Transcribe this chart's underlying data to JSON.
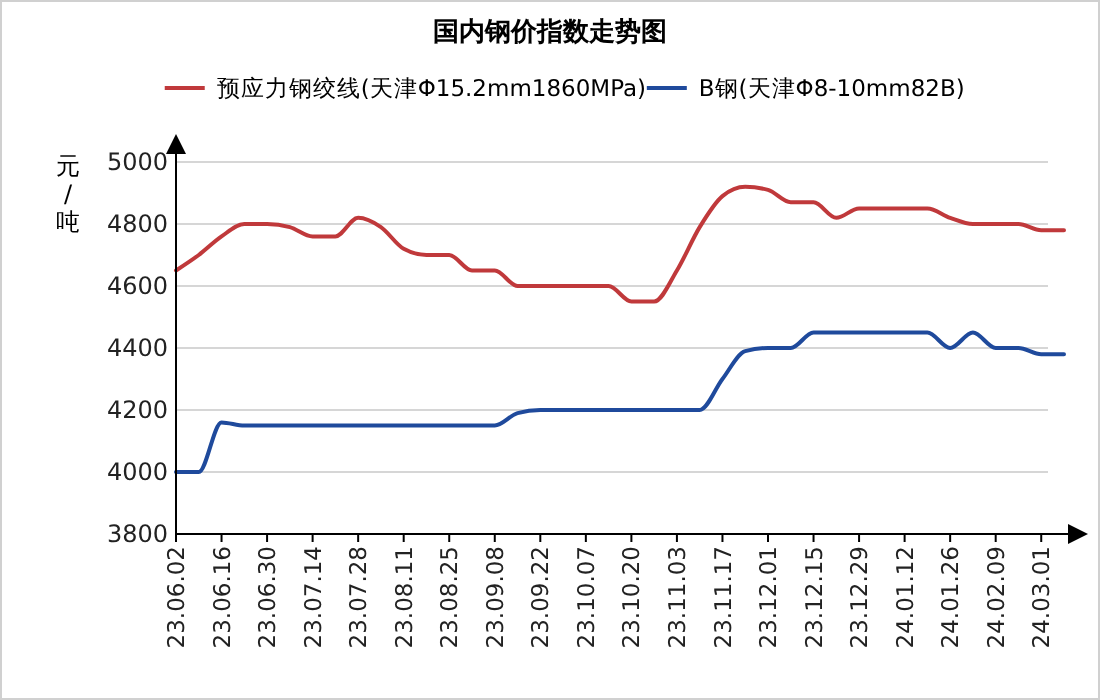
{
  "chart_data": {
    "type": "line",
    "title": "国内钢价指数走势图",
    "ylabel": "元/吨",
    "categories": [
      "23.06.02",
      null,
      "23.06.16",
      null,
      "23.06.30",
      null,
      "23.07.14",
      null,
      "23.07.28",
      null,
      "23.08.11",
      null,
      "23.08.25",
      null,
      "23.09.08",
      null,
      "23.09.22",
      null,
      "23.10.07",
      null,
      "23.10.20",
      null,
      "23.11.03",
      null,
      "23.11.17",
      null,
      "23.12.01",
      null,
      "23.12.15",
      null,
      "23.12.29",
      null,
      "24.01.12",
      null,
      "24.01.26",
      null,
      "24.02.09",
      null,
      "24.03.01",
      null
    ],
    "series": [
      {
        "name": "预应力钢绞线(天津Φ15.2mm1860MPa)",
        "color": "#c0393b",
        "values": [
          4650,
          4700,
          4760,
          4800,
          4800,
          4790,
          4760,
          4760,
          4820,
          4790,
          4720,
          4700,
          4700,
          4650,
          4650,
          4600,
          4600,
          4600,
          4600,
          4600,
          4550,
          4550,
          4650,
          4790,
          4890,
          4920,
          4910,
          4870,
          4870,
          4820,
          4850,
          4850,
          4850,
          4850,
          4820,
          4800,
          4800,
          4800,
          4780,
          4780
        ]
      },
      {
        "name": "B钢(天津Φ8-10mm82B)",
        "color": "#1f4a9c",
        "values": [
          4000,
          4000,
          4160,
          4150,
          4150,
          4150,
          4150,
          4150,
          4150,
          4150,
          4150,
          4150,
          4150,
          4150,
          4150,
          4190,
          4200,
          4200,
          4200,
          4200,
          4200,
          4200,
          4200,
          4200,
          4300,
          4390,
          4400,
          4400,
          4450,
          4450,
          4450,
          4450,
          4450,
          4450,
          4400,
          4450,
          4400,
          4400,
          4380,
          4380
        ]
      }
    ],
    "ylim": [
      3800,
      5000
    ],
    "yticks": [
      3800,
      4000,
      4200,
      4400,
      4600,
      4800,
      5000
    ],
    "grid": "y",
    "legend": "top",
    "marker": "none",
    "line_style": "solid"
  }
}
